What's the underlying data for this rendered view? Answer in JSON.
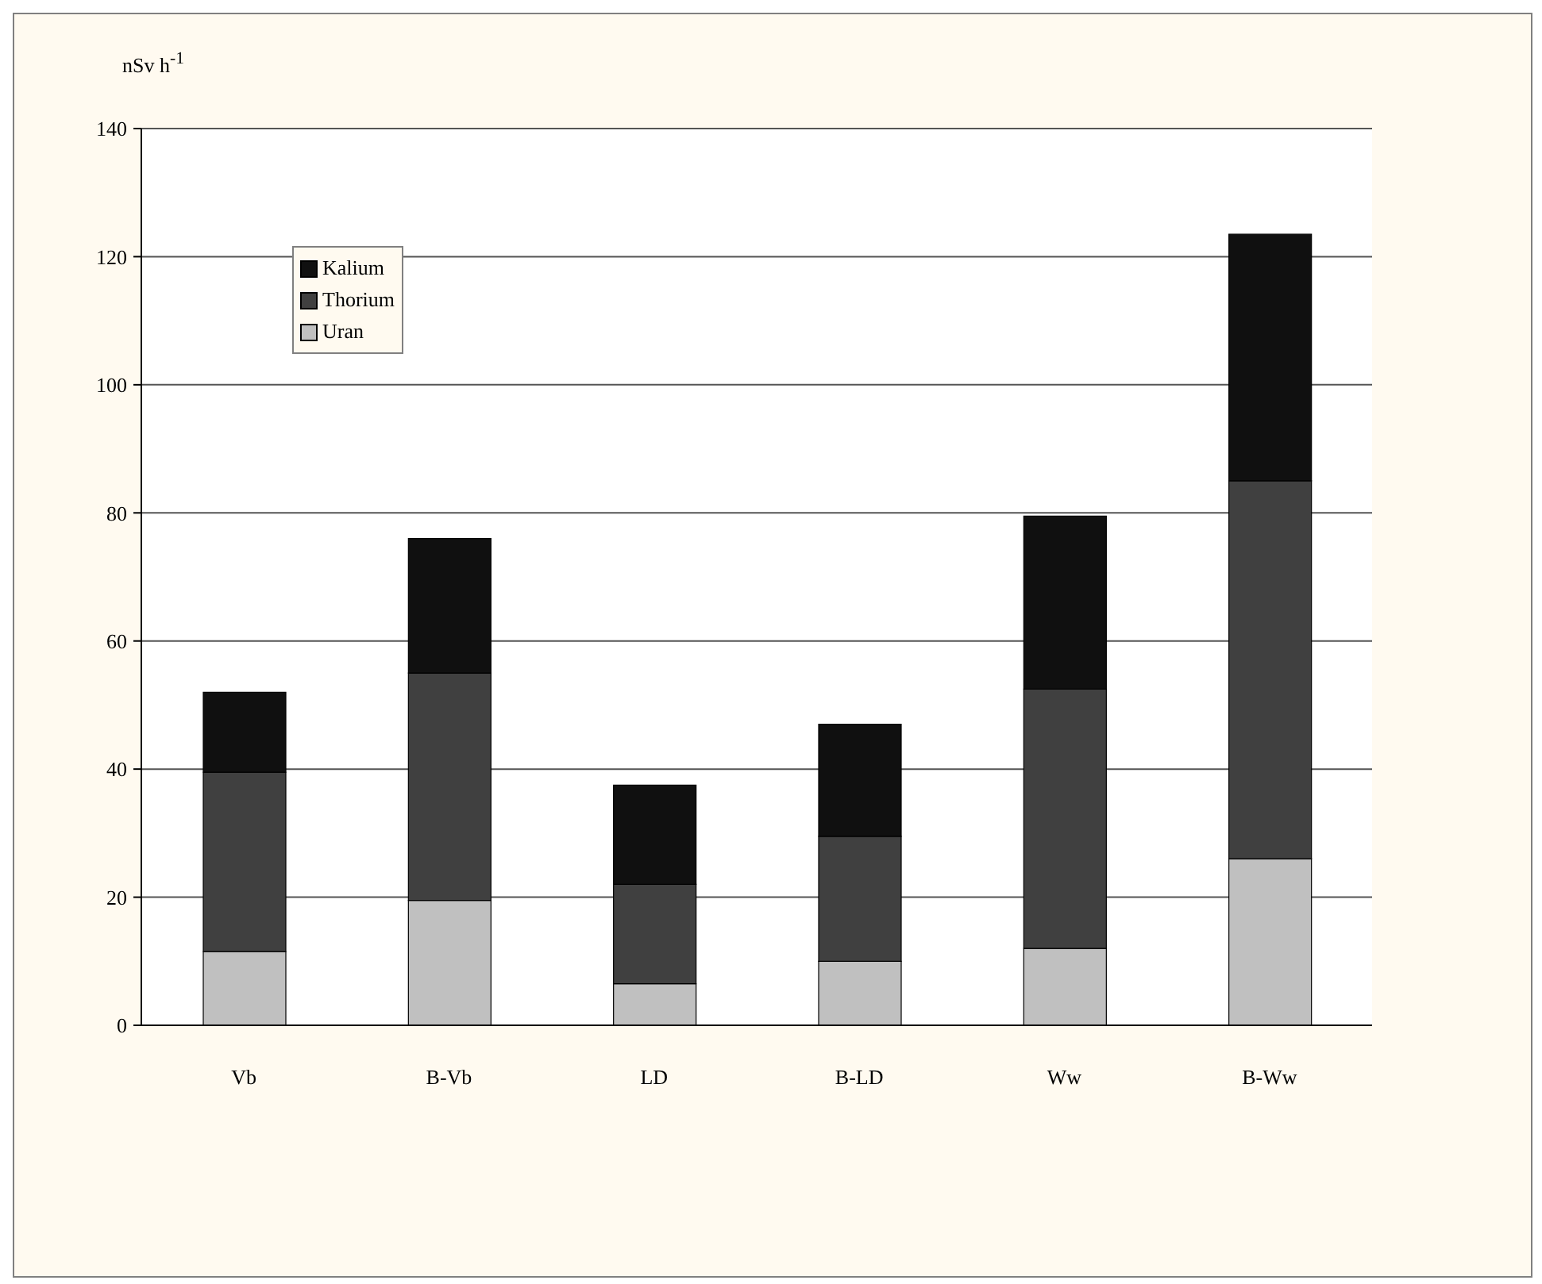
{
  "chart_data": {
    "type": "bar",
    "ylabel": "nSv h$^{-1}$",
    "categories": [
      "Vb",
      "B-Vb",
      "LD",
      "B-LD",
      "Ww",
      "B-Ww"
    ],
    "stacked": true,
    "series": [
      {
        "name": "Uran",
        "color": "#c0c0c0",
        "values": [
          11.5,
          19.5,
          6.5,
          10,
          12,
          26
        ]
      },
      {
        "name": "Thorium",
        "color": "#404040",
        "values": [
          28,
          35.5,
          15.5,
          19.5,
          40.5,
          59
        ]
      },
      {
        "name": "Kalium",
        "color": "#101010",
        "values": [
          12.5,
          21,
          15.5,
          17.5,
          27,
          38.5
        ]
      }
    ],
    "ylim": [
      0,
      140
    ],
    "yticks": [
      0,
      20,
      40,
      60,
      80,
      100,
      120,
      140
    ],
    "grid": "y",
    "legend": "top left"
  }
}
